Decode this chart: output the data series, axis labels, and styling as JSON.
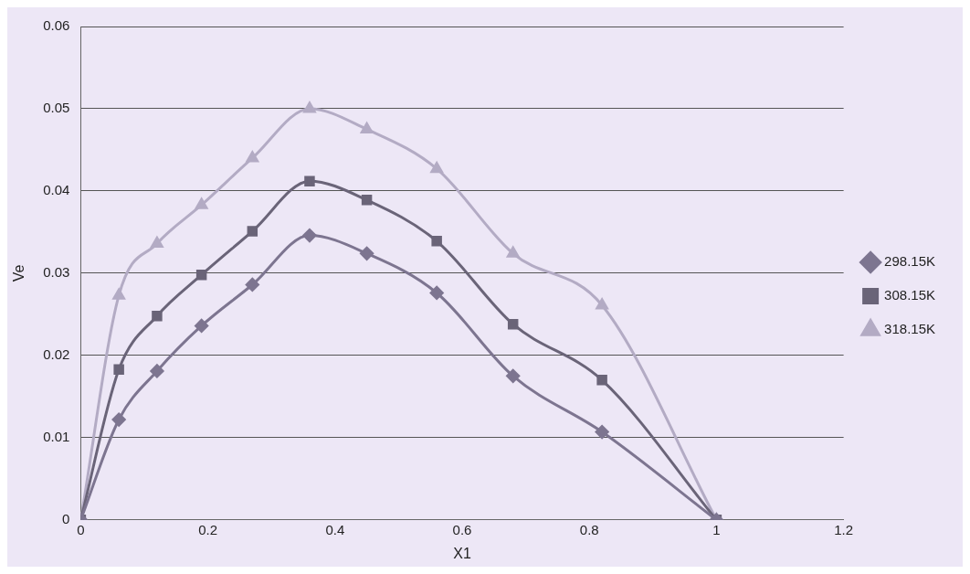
{
  "chart_data": {
    "type": "line",
    "xlabel": "X1",
    "ylabel": "Ve",
    "xlim": [
      0,
      1.2
    ],
    "xticks": [
      0,
      0.2,
      0.4,
      0.6,
      0.8,
      1,
      1.2
    ],
    "ylim": [
      0,
      0.06
    ],
    "yticks": [
      0,
      0.01,
      0.02,
      0.03,
      0.04,
      0.05,
      0.06
    ],
    "grid": "y",
    "legend": "right",
    "line_style": "solid",
    "x": [
      0,
      0.06,
      0.12,
      0.19,
      0.27,
      0.36,
      0.45,
      0.56,
      0.68,
      0.82,
      1
    ],
    "series": [
      {
        "name": "298.15K",
        "color": "#7d7590",
        "marker": "diamond",
        "values": [
          0,
          0.0122,
          0.0181,
          0.0236,
          0.0286,
          0.0346,
          0.0324,
          0.0276,
          0.0175,
          0.0107,
          0
        ]
      },
      {
        "name": "308.15K",
        "color": "#6a6478",
        "marker": "square",
        "values": [
          0,
          0.0183,
          0.0248,
          0.0298,
          0.0351,
          0.0412,
          0.0389,
          0.0339,
          0.0238,
          0.017,
          0
        ]
      },
      {
        "name": "318.15K",
        "color": "#b3abc4",
        "marker": "triangle",
        "values": [
          0,
          0.0273,
          0.0336,
          0.0383,
          0.044,
          0.05,
          0.0475,
          0.0427,
          0.0324,
          0.0261,
          0
        ]
      }
    ]
  }
}
